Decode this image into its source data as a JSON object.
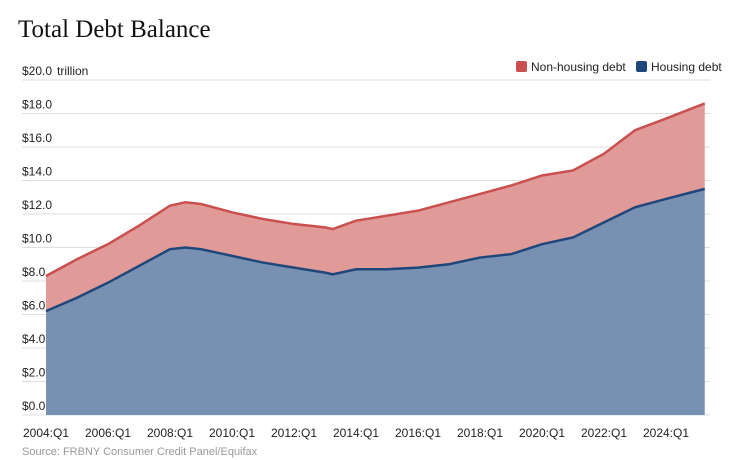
{
  "chart_data": {
    "type": "area",
    "title": "Total Debt Balance",
    "ylabel": "trillion",
    "y_unit_prefix": "$",
    "ylim": [
      0,
      20
    ],
    "yticks": [
      0,
      2,
      4,
      6,
      8,
      10,
      12,
      14,
      16,
      18,
      20
    ],
    "xticks": [
      "2004:Q1",
      "2006:Q1",
      "2008:Q1",
      "2010:Q1",
      "2012:Q1",
      "2014:Q1",
      "2016:Q1",
      "2018:Q1",
      "2020:Q1",
      "2022:Q1",
      "2024:Q1"
    ],
    "grid": true,
    "stacked": true,
    "legend_position": "top-right",
    "x": [
      "2004:Q1",
      "2005:Q1",
      "2006:Q1",
      "2007:Q1",
      "2008:Q1",
      "2008:Q3",
      "2009:Q1",
      "2010:Q1",
      "2011:Q1",
      "2012:Q1",
      "2013:Q1",
      "2013:Q2",
      "2014:Q1",
      "2015:Q1",
      "2016:Q1",
      "2017:Q1",
      "2018:Q1",
      "2019:Q1",
      "2020:Q1",
      "2021:Q1",
      "2022:Q1",
      "2023:Q1",
      "2024:Q1",
      "2025:Q2"
    ],
    "series": [
      {
        "name": "Non-housing debt",
        "color": "#c9504f",
        "fill": "#e09a98",
        "values": [
          2.1,
          2.3,
          2.3,
          2.4,
          2.6,
          2.7,
          2.7,
          2.6,
          2.6,
          2.6,
          2.7,
          2.7,
          2.9,
          3.2,
          3.4,
          3.7,
          3.8,
          4.1,
          4.1,
          4.0,
          4.1,
          4.6,
          4.8,
          5.1
        ]
      },
      {
        "name": "Housing debt",
        "color": "#1f477b",
        "fill": "#7891b2",
        "values": [
          6.2,
          7.0,
          7.9,
          8.9,
          9.9,
          10.0,
          9.9,
          9.5,
          9.1,
          8.8,
          8.5,
          8.4,
          8.7,
          8.7,
          8.8,
          9.0,
          9.4,
          9.6,
          10.2,
          10.6,
          11.5,
          12.4,
          12.9,
          13.5
        ]
      }
    ],
    "source": "Source: FRBNY Consumer Credit Panel/Equifax"
  }
}
